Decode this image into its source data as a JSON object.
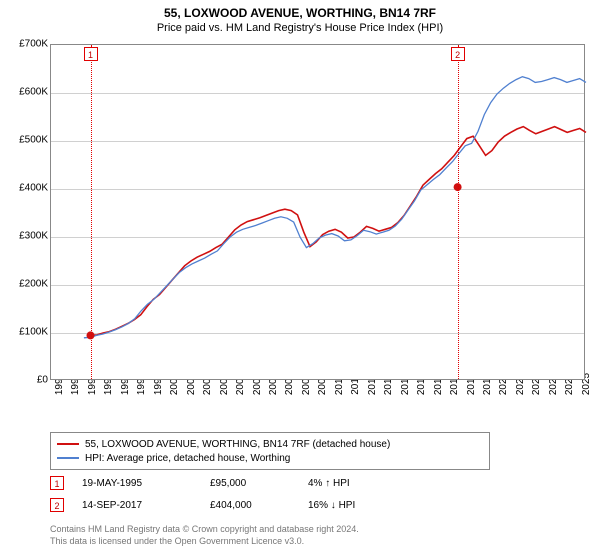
{
  "header": {
    "title": "55, LOXWOOD AVENUE, WORTHING, BN14 7RF",
    "subtitle": "Price paid vs. HM Land Registry's House Price Index (HPI)"
  },
  "chart": {
    "type": "line",
    "background_color": "#ffffff",
    "grid_color": "#d0d0d0",
    "border_color": "#888888",
    "y_axis": {
      "min": 0,
      "max": 700000,
      "tick_step": 100000,
      "labels": [
        "£0",
        "£100K",
        "£200K",
        "£300K",
        "£400K",
        "£500K",
        "£600K",
        "£700K"
      ]
    },
    "x_axis": {
      "min": 1993,
      "max": 2025.5,
      "labels": [
        "1993",
        "1994",
        "1995",
        "1996",
        "1997",
        "1998",
        "1999",
        "2000",
        "2001",
        "2002",
        "2003",
        "2004",
        "2005",
        "2006",
        "2007",
        "2008",
        "2009",
        "2010",
        "2011",
        "2012",
        "2013",
        "2014",
        "2015",
        "2016",
        "2017",
        "2018",
        "2019",
        "2020",
        "2021",
        "2022",
        "2023",
        "2024",
        "2025"
      ]
    },
    "series": [
      {
        "name": "price_paid",
        "color": "#d01010",
        "width": 1.6,
        "start_year": 1995.4,
        "points": [
          95,
          96,
          100,
          103,
          108,
          114,
          120,
          128,
          138,
          155,
          170,
          180,
          195,
          210,
          225,
          240,
          250,
          258,
          264,
          270,
          278,
          285,
          300,
          315,
          325,
          332,
          336,
          340,
          345,
          350,
          355,
          358,
          355,
          346,
          310,
          280,
          290,
          305,
          312,
          316,
          310,
          298,
          300,
          310,
          322,
          318,
          312,
          316,
          320,
          330,
          345,
          365,
          385,
          408,
          420,
          432,
          442,
          456,
          470,
          488,
          505,
          510,
          490,
          470,
          480,
          498,
          510,
          518,
          525,
          530,
          522,
          515,
          520,
          525,
          530,
          524,
          518,
          522,
          526,
          518
        ]
      },
      {
        "name": "hpi",
        "color": "#5080d0",
        "width": 1.3,
        "start_year": 1995.0,
        "points": [
          90,
          91,
          95,
          98,
          102,
          107,
          113,
          120,
          130,
          146,
          160,
          170,
          184,
          198,
          212,
          226,
          236,
          244,
          250,
          256,
          264,
          271,
          286,
          300,
          310,
          316,
          320,
          324,
          329,
          334,
          339,
          342,
          339,
          331,
          300,
          278,
          286,
          298,
          304,
          307,
          302,
          292,
          294,
          303,
          314,
          311,
          306,
          310,
          314,
          323,
          337,
          356,
          375,
          398,
          409,
          420,
          430,
          444,
          457,
          474,
          490,
          495,
          520,
          555,
          580,
          598,
          610,
          620,
          628,
          634,
          630,
          622,
          624,
          628,
          632,
          628,
          622,
          626,
          630,
          622
        ]
      }
    ],
    "markers": [
      {
        "id": "1",
        "year": 1995.4,
        "value": 95000
      },
      {
        "id": "2",
        "year": 2017.7,
        "value": 404000
      }
    ]
  },
  "legend": {
    "items": [
      {
        "color": "#d01010",
        "label": "55, LOXWOOD AVENUE, WORTHING, BN14 7RF (detached house)"
      },
      {
        "color": "#5080d0",
        "label": "HPI: Average price, detached house, Worthing"
      }
    ]
  },
  "sales": [
    {
      "id": "1",
      "date": "19-MAY-1995",
      "price": "£95,000",
      "diff": "4% ↑ HPI"
    },
    {
      "id": "2",
      "date": "14-SEP-2017",
      "price": "£404,000",
      "diff": "16% ↓ HPI"
    }
  ],
  "footnote": {
    "line1": "Contains HM Land Registry data © Crown copyright and database right 2024.",
    "line2": "This data is licensed under the Open Government Licence v3.0."
  }
}
